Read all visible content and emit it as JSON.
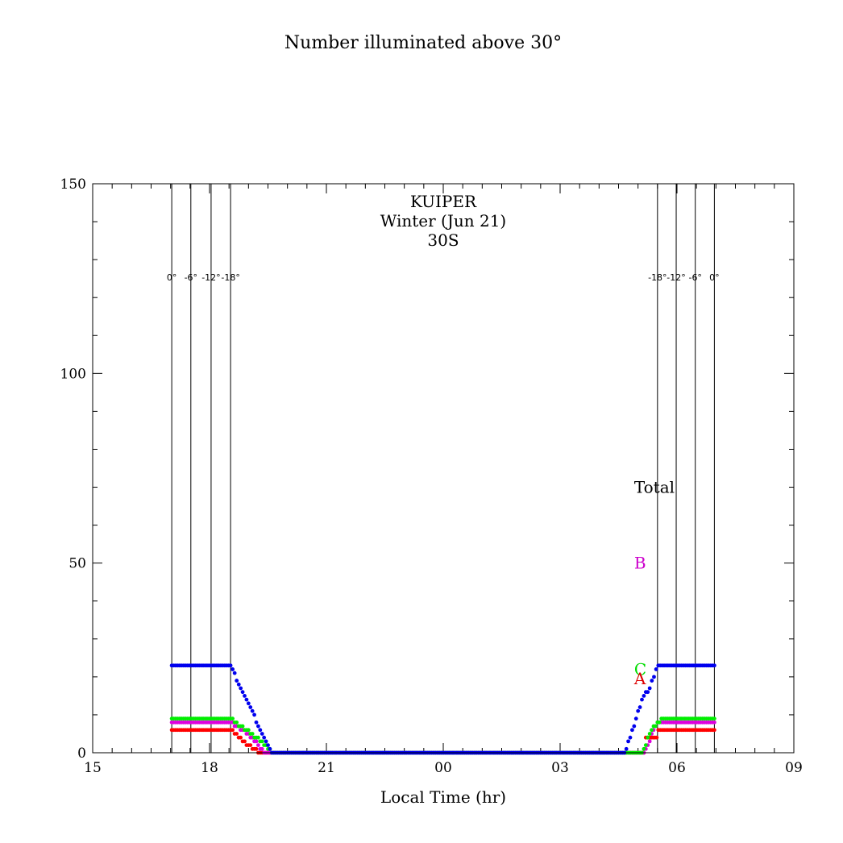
{
  "chart_data": {
    "type": "scatter",
    "title": "Number illuminated above 30°",
    "annotation_lines": [
      "KUIPER",
      "Winter (Jun 21)",
      "30S"
    ],
    "xlabel": "Local Time (hr)",
    "ylabel": "",
    "xlim": [
      15,
      33
    ],
    "ylim": [
      0,
      150
    ],
    "x_ticks": [
      {
        "v": 15,
        "label": "15"
      },
      {
        "v": 18,
        "label": "18"
      },
      {
        "v": 21,
        "label": "21"
      },
      {
        "v": 24,
        "label": "00"
      },
      {
        "v": 27,
        "label": "03"
      },
      {
        "v": 30,
        "label": "06"
      },
      {
        "v": 33,
        "label": "09"
      }
    ],
    "y_ticks": [
      {
        "v": 0,
        "label": "0"
      },
      {
        "v": 50,
        "label": "50"
      },
      {
        "v": 100,
        "label": "100"
      },
      {
        "v": 150,
        "label": "150"
      }
    ],
    "twilight_lines": [
      {
        "x": 17.03,
        "label": "0°"
      },
      {
        "x": 17.52,
        "label": "-6°"
      },
      {
        "x": 18.04,
        "label": "-12°"
      },
      {
        "x": 18.54,
        "label": "-18°"
      },
      {
        "x": 29.5,
        "label": "-18°"
      },
      {
        "x": 29.98,
        "label": "-12°"
      },
      {
        "x": 30.47,
        "label": "-6°"
      },
      {
        "x": 30.96,
        "label": "0°"
      }
    ],
    "legend": [
      {
        "label": "Total",
        "color": "#000000",
        "y": 70
      },
      {
        "label": "B",
        "color": "#cc00cc",
        "y": 50
      },
      {
        "label": "C",
        "color": "#00dd00",
        "y": 22
      },
      {
        "label": "A",
        "color": "#dd0000",
        "y": 19.5
      }
    ],
    "series": [
      {
        "name": "A",
        "color": "#ff0000",
        "segments": [
          [
            17.03,
            6
          ],
          [
            18.54,
            6
          ],
          [
            18.85,
            3
          ],
          [
            19.3,
            0
          ],
          [
            29.0,
            0
          ],
          [
            29.15,
            0
          ],
          [
            29.2,
            4
          ],
          [
            29.48,
            4
          ],
          [
            29.52,
            6
          ],
          [
            30.96,
            6
          ]
        ]
      },
      {
        "name": "B",
        "color": "#dd00dd",
        "segments": [
          [
            17.03,
            8
          ],
          [
            18.54,
            8
          ],
          [
            19.0,
            5
          ],
          [
            19.4,
            0
          ],
          [
            29.0,
            0
          ],
          [
            29.15,
            0
          ],
          [
            29.5,
            8
          ],
          [
            30.96,
            8
          ]
        ]
      },
      {
        "name": "C",
        "color": "#00ee00",
        "segments": [
          [
            17.03,
            9
          ],
          [
            18.54,
            9
          ],
          [
            18.8,
            7
          ],
          [
            19.2,
            4
          ],
          [
            19.6,
            0
          ],
          [
            28.9,
            0
          ],
          [
            29.1,
            0
          ],
          [
            29.35,
            6
          ],
          [
            29.6,
            9
          ],
          [
            30.96,
            9
          ]
        ]
      },
      {
        "name": "Total",
        "color": "#0000ee",
        "segments": [
          [
            17.03,
            23
          ],
          [
            18.54,
            23
          ],
          [
            18.75,
            18
          ],
          [
            19.05,
            12
          ],
          [
            19.3,
            6
          ],
          [
            19.6,
            0
          ],
          [
            28.5,
            0
          ],
          [
            28.65,
            0
          ],
          [
            28.9,
            7
          ],
          [
            29.1,
            14
          ],
          [
            29.3,
            17
          ],
          [
            29.52,
            23
          ],
          [
            30.96,
            23
          ]
        ]
      }
    ]
  }
}
